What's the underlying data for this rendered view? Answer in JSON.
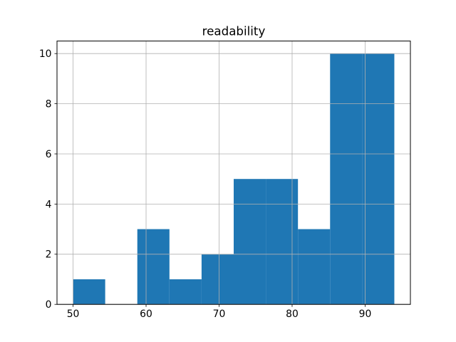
{
  "chart_data": {
    "type": "bar",
    "kind": "histogram",
    "title": "readability",
    "bin_edges": [
      50.0,
      54.4,
      58.8,
      63.2,
      67.6,
      72.0,
      76.4,
      80.8,
      85.2,
      89.6,
      94.0
    ],
    "counts": [
      1,
      0,
      3,
      1,
      2,
      5,
      5,
      3,
      10,
      10
    ],
    "xticks": [
      50,
      60,
      70,
      80,
      90
    ],
    "yticks": [
      0,
      2,
      4,
      6,
      8,
      10
    ],
    "xlim": [
      47.8,
      96.2
    ],
    "ylim": [
      0,
      10.5
    ],
    "grid": true,
    "grid_above_bars": true,
    "bar_color": "#1f77b4",
    "grid_color": "#b0b0b0",
    "axis_color": "#000000",
    "text_color": "#000000",
    "background_color": "#ffffff"
  }
}
